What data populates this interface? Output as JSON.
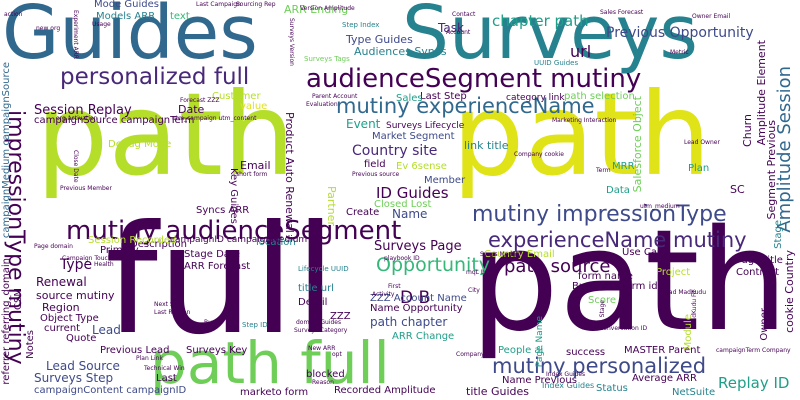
{
  "palette": {
    "dark_purple": "#440154",
    "indigo": "#482878",
    "blue": "#3e4a89",
    "steel": "#31688e",
    "teal": "#26828e",
    "sea_green": "#1f9e89",
    "green": "#35b779",
    "light_green": "#6ece58",
    "lime": "#b5de2b",
    "yellow": "#dfe318"
  },
  "words": {
    "guides": "Guides",
    "surveys": "Surveys",
    "path_1": "path",
    "path_2": "path",
    "full_1": "full",
    "path_3": "path",
    "path_full": "path full",
    "audience_segment_mutiny": "audienceSegment mutiny",
    "mutiny_audience_segment": "mutiny audienceSegment",
    "personalized_full": "personalized full",
    "mutiny_experience_name": "mutiny experienceName",
    "mutiny_impression_type": "mutiny impressionType",
    "experience_name_mutiny": "experienceName mutiny",
    "mutiny_personalized": "mutiny personalized",
    "impression_type_mutiny": "impressionType mutiny",
    "opportunity": "Opportunity",
    "path_source": "path source",
    "chapter_path": "chapter path",
    "previous_opportunity": "Previous Opportunity",
    "amplitude_session": "Amplitude Session",
    "country_site": "Country site",
    "id_guides": "ID Guides",
    "d_b": "D B",
    "session_replay": "Session Replay",
    "surveys_page": "Surveys Page",
    "replay_id": "Replay ID",
    "url": "url",
    "type_guides": "Type Guides",
    "audiences_syncs": "Audiences Syncs",
    "event": "Event",
    "task": "Task",
    "arr_ending": "ARR Ending",
    "mode_guides": "Mode Guides",
    "models_arr": "Models ARR",
    "text": "text",
    "last_step": "Last Step",
    "sales": "Sales",
    "customer": "Customer",
    "value": "value",
    "date": "Date",
    "email": "Email",
    "name": "Name",
    "member": "Member",
    "closed_lost": "Closed Lost",
    "partner": "Partner",
    "create": "Create",
    "ev_6sense": "Ev 6sense",
    "field": "field",
    "link_title": "link title",
    "market_segment": "Market Segment",
    "surveys_lifecycle": "Surveys Lifecycle",
    "path_selection": "path selection",
    "category_link": "category link",
    "country_email": "Country Email",
    "use_case": "Use Case",
    "form_name": "form name",
    "form_id": "form id",
    "business": "Business",
    "name_opportunity": "Name Opportunity",
    "zzz_account_name": "ZZZ Account Name",
    "path_chapter": "path chapter",
    "arr_change": "ARR Change",
    "people_ai": "People ai",
    "success": "success",
    "master_parent": "MASTER Parent",
    "average_arr": "Average ARR",
    "status": "Status",
    "netsuite": "NetSuite",
    "index_guides": "Index Guides",
    "name_previous": "Name Previous",
    "title_guides": "title Guides",
    "recorded_amplitude": "Recorded Amplitude",
    "marketo_form": "marketo form",
    "blocked": "blocked",
    "last": "Last",
    "surveys_step": "Surveys Step",
    "lead_source": "Lead Source",
    "previous_lead": "Previous Lead",
    "surveys_key": "Surveys Key",
    "quote": "Quote",
    "lead": "Lead",
    "detail": "Detail",
    "zzz": "ZZZ",
    "title_url": "title url",
    "arr_forecast": "ARR Forecast",
    "stage_date": "Stage Date",
    "primary": "Primary",
    "type": "Type",
    "renewal": "Renewal",
    "source_mutiny": "source mutiny",
    "region": "Region",
    "object_type": "Object Type",
    "current": "current",
    "description": "Description",
    "session_recorded": "Session Recorded",
    "syncs_arr": "Syncs ARR",
    "location": "location",
    "debug_mode": "Debug Mode",
    "campaign_source_term": "campaignSource campaignTerm",
    "campaign_content_id": "campaignContent campaignID",
    "campaign_id_medium": "campaignID campaignMedium",
    "key_guides": "Key Guides",
    "product_auto_renewal": "Product Auto Renewal",
    "churn": "Churn",
    "amplitude_element": "Amplitude Element",
    "segment_previous": "Segment Previous",
    "salesforce_object": "Salesforce Object",
    "mrr": "MRR",
    "plan": "Plan",
    "sc": "SC",
    "data": "Data",
    "page_title": "Page title",
    "project": "Project",
    "contract": "Contract",
    "stage": "Stage",
    "owner": "Owner",
    "cookie_country": "cookie Country",
    "score": "Score",
    "module": "Module",
    "page_name": "Page Name",
    "campaign_medium_source": "campaignMedium campaignSource",
    "referrer_domain": "referrer referring_domain",
    "csm": "CSM",
    "notes": "Notes",
    "small_1": "action",
    "small_2": "Account",
    "small_3": "Contact",
    "small_4": "Owner Email",
    "small_5": "Sourcing Rep",
    "small_6": "Last Campaign",
    "small_7": "Step Index",
    "small_8": "UUID Guides",
    "small_9": "Surveys Tags",
    "small_10": "Metric",
    "small_11": "Lead Owner",
    "small_12": "Evaluation",
    "small_13": "short form",
    "small_14": "Forecast ZZZ",
    "small_15": "utm_campaign utm_content",
    "small_16": "org activation",
    "small_17": "Surveys Version",
    "small_18": "Parent Account",
    "small_19": "Previous source",
    "small_20": "Term",
    "small_21": "Close Date",
    "small_22": "Previous Member",
    "small_23": "Campaign Touch",
    "small_24": "Health",
    "small_25": "playbook ID",
    "small_26": "Syncs Model",
    "small_27": "Lead MadKudu",
    "small_28": "Next Step",
    "small_29": "Last Reason",
    "small_30": "Buy",
    "small_31": "Version Amplitude",
    "small_32": "Lifecycle UUID",
    "small_33": "Step ID",
    "small_34": "domain Guides",
    "small_35": "Surveys Category",
    "small_36": "New ARR",
    "small_37": "Reason",
    "small_38": "Technical Win",
    "small_39": "Plan Link",
    "small_40": "Company",
    "small_41": "campaignTerm Company",
    "small_42": "opt",
    "small_43": "utm_medium",
    "small_44": "Index Guides",
    "small_45": "City",
    "small_46": "MadKudu Fit",
    "small_47": "Stage",
    "small_48": "conversation ID",
    "small_49": "Activity",
    "small_50": "First",
    "small_51": "Company cookie",
    "small_52": "Usage",
    "small_53": "new org",
    "small_54": "Experiment ARR",
    "small_55": "Sales Forecast",
    "small_56": "Marketing Interaction",
    "small_57": "mqL Lead",
    "small_58": "Page domain"
  }
}
